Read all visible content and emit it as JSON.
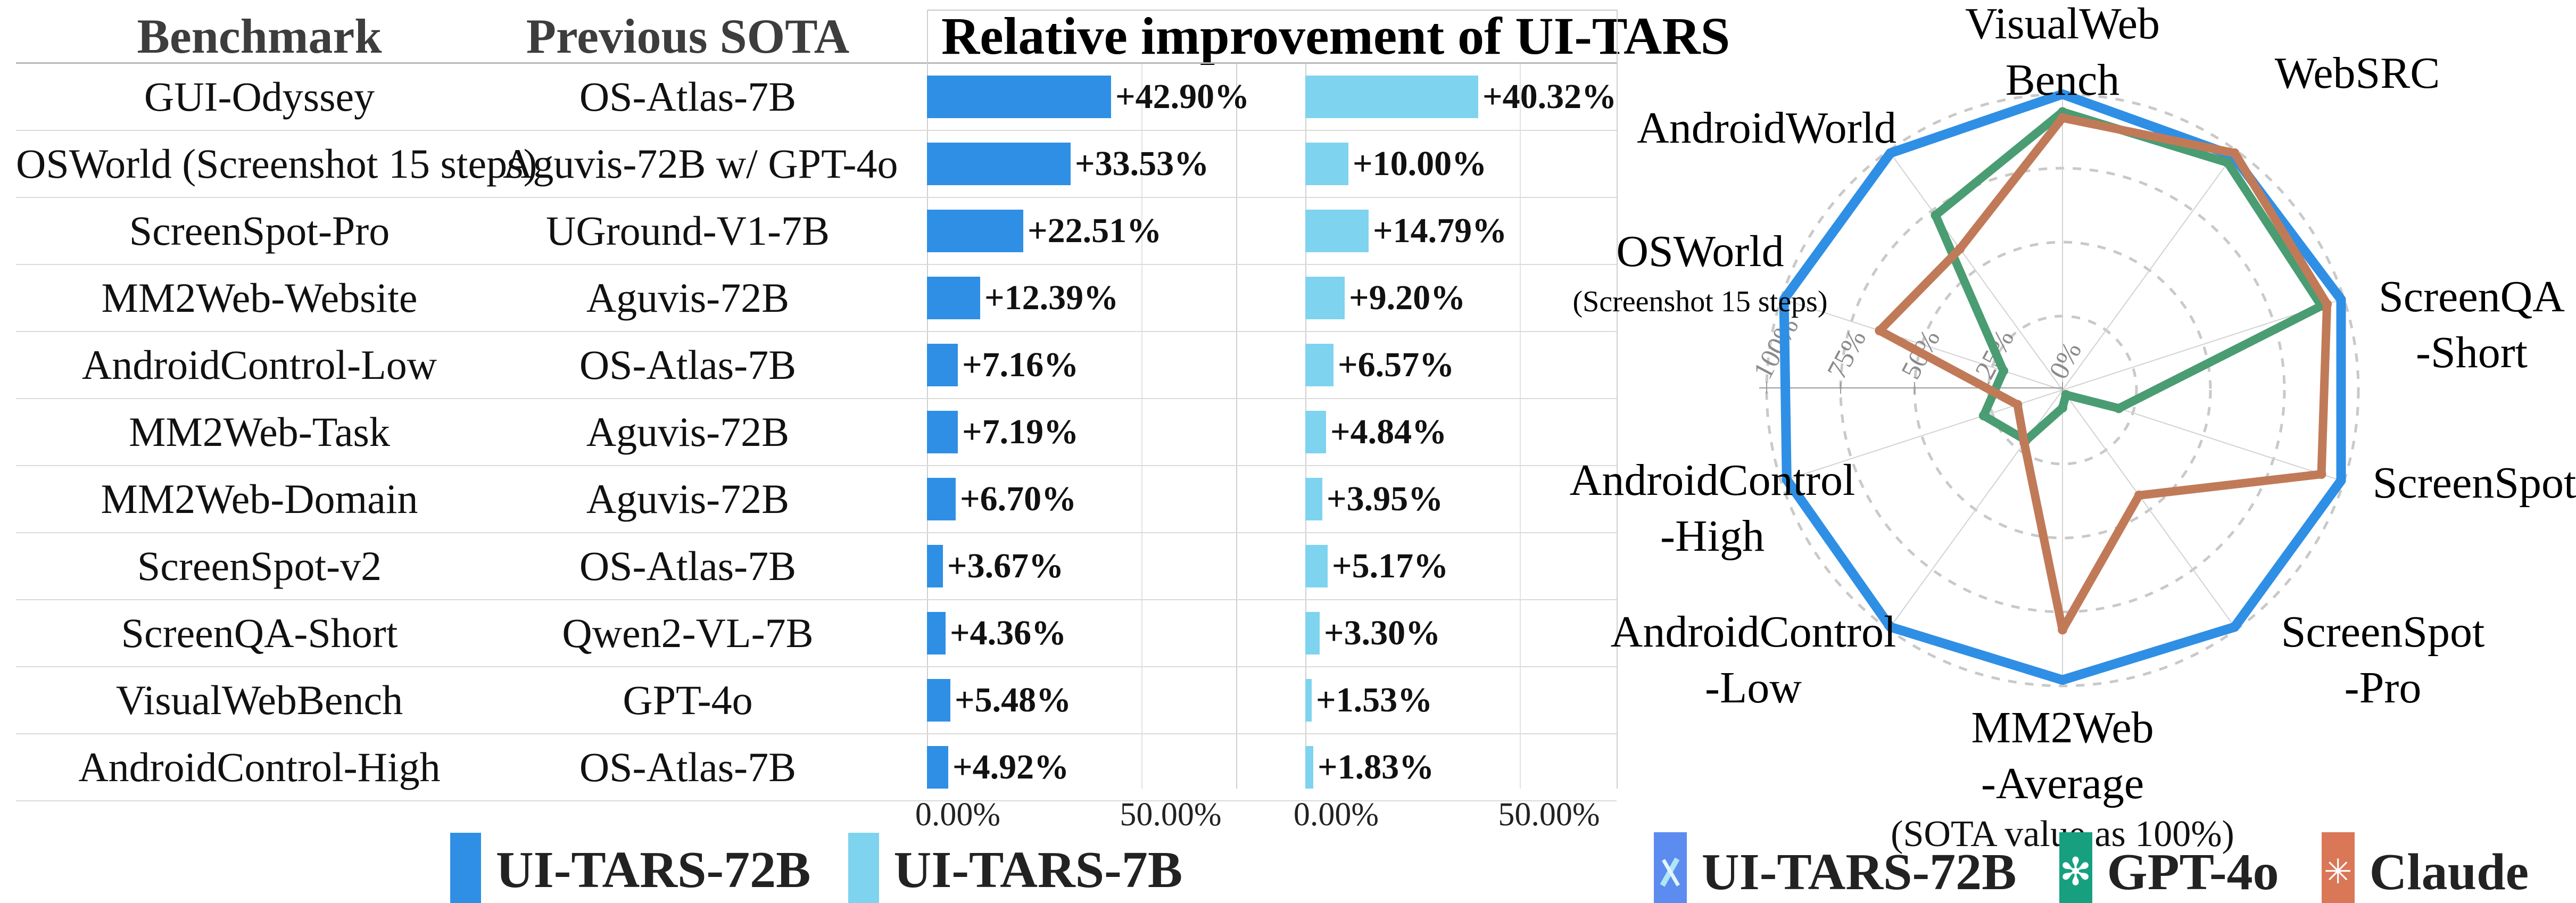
{
  "table": {
    "header": {
      "benchmark": "Benchmark",
      "previous_sota": "Previous SOTA",
      "improvement": "Relative improvement of UI-TARS"
    },
    "rows": [
      {
        "benchmark": "GUI-Odyssey",
        "previous_sota": "OS-Atlas-7B",
        "label_72b": "+42.90%",
        "label_7b": "+40.32%"
      },
      {
        "benchmark": "OSWorld (Screenshot 15 steps)",
        "previous_sota": "Aguvis-72B w/ GPT-4o",
        "label_72b": "+33.53%",
        "label_7b": "+10.00%"
      },
      {
        "benchmark": "ScreenSpot-Pro",
        "previous_sota": "UGround-V1-7B",
        "label_72b": "+22.51%",
        "label_7b": "+14.79%"
      },
      {
        "benchmark": "MM2Web-Website",
        "previous_sota": "Aguvis-72B",
        "label_72b": "+12.39%",
        "label_7b": "+9.20%"
      },
      {
        "benchmark": "AndroidControl-Low",
        "previous_sota": "OS-Atlas-7B",
        "label_72b": "+7.16%",
        "label_7b": "+6.57%"
      },
      {
        "benchmark": "MM2Web-Task",
        "previous_sota": "Aguvis-72B",
        "label_72b": "+7.19%",
        "label_7b": "+4.84%"
      },
      {
        "benchmark": "MM2Web-Domain",
        "previous_sota": "Aguvis-72B",
        "label_72b": "+6.70%",
        "label_7b": "+3.95%"
      },
      {
        "benchmark": "ScreenSpot-v2",
        "previous_sota": "OS-Atlas-7B",
        "label_72b": "+3.67%",
        "label_7b": "+5.17%"
      },
      {
        "benchmark": "ScreenQA-Short",
        "previous_sota": "Qwen2-VL-7B",
        "label_72b": "+4.36%",
        "label_7b": "+3.30%"
      },
      {
        "benchmark": "VisualWebBench",
        "previous_sota": "GPT-4o",
        "label_72b": "+5.48%",
        "label_7b": "+1.53%"
      },
      {
        "benchmark": "AndroidControl-High",
        "previous_sota": "OS-Atlas-7B",
        "label_72b": "+4.92%",
        "label_7b": "+1.83%"
      }
    ],
    "axis_ticks": [
      "0.00%",
      "50.00%"
    ],
    "legend": [
      {
        "label": "UI-TARS-72B",
        "color": "#2f8fe5"
      },
      {
        "label": "UI-TARS-7B",
        "color": "#7ed3ef"
      }
    ]
  },
  "radar": {
    "caption": "(SOTA value as 100%)",
    "tick_labels": [
      "100%",
      "75%",
      "50%",
      "25%",
      "0%"
    ],
    "axes": [
      {
        "label": [
          "VisualWeb",
          "Bench"
        ]
      },
      {
        "label": [
          "WebSRC"
        ]
      },
      {
        "label": [
          "ScreenQA",
          "-Short"
        ]
      },
      {
        "label": [
          "ScreenSpot"
        ]
      },
      {
        "label": [
          "ScreenSpot",
          "-Pro"
        ]
      },
      {
        "label": [
          "MM2Web",
          "-Average"
        ]
      },
      {
        "label": [
          "AndroidControl",
          "-Low"
        ]
      },
      {
        "label": [
          "AndroidControl",
          "-High"
        ]
      },
      {
        "label": [
          "OSWorld"
        ],
        "sublabel": "(Screenshot 15 steps)"
      },
      {
        "label": [
          "AndroidWorld"
        ]
      }
    ],
    "legend": [
      {
        "label": "UI-TARS-72B",
        "icon": "uitars",
        "bg": "#5c8cf0",
        "line": "#2f8fe5"
      },
      {
        "label": "GPT-4o",
        "icon": "openai",
        "bg": "#16a07f",
        "line": "#4a9c73"
      },
      {
        "label": "Claude",
        "icon": "claude",
        "bg": "#d97757",
        "line": "#c17a58"
      }
    ]
  },
  "chart_data": [
    {
      "type": "bar",
      "title": "Relative improvement of UI-TARS",
      "orientation": "horizontal",
      "categories": [
        "GUI-Odyssey",
        "OSWorld (Screenshot 15 steps)",
        "ScreenSpot-Pro",
        "MM2Web-Website",
        "AndroidControl-Low",
        "MM2Web-Task",
        "MM2Web-Domain",
        "ScreenSpot-v2",
        "ScreenQA-Short",
        "VisualWebBench",
        "AndroidControl-High"
      ],
      "series": [
        {
          "name": "UI-TARS-72B",
          "color": "#2f8fe5",
          "values": [
            42.9,
            33.53,
            22.51,
            12.39,
            7.16,
            7.19,
            6.7,
            3.67,
            4.36,
            5.48,
            4.92
          ]
        },
        {
          "name": "UI-TARS-7B",
          "color": "#7ed3ef",
          "values": [
            40.32,
            10.0,
            14.79,
            9.2,
            6.57,
            4.84,
            3.95,
            5.17,
            3.3,
            1.53,
            1.83
          ]
        }
      ],
      "xlabel": "",
      "ylabel": "",
      "x_ticks": [
        "0.00%",
        "50.00%"
      ],
      "xlim": [
        0,
        72
      ],
      "grid": true,
      "unit": "%"
    },
    {
      "type": "radar",
      "title": "(SOTA value as 100%)",
      "categories": [
        "VisualWebBench",
        "WebSRC",
        "ScreenQA-Short",
        "ScreenSpot",
        "ScreenSpot-Pro",
        "MM2Web-Average",
        "AndroidControl-Low",
        "AndroidControl-High",
        "OSWorld (Screenshot 15 steps)",
        "AndroidWorld"
      ],
      "series": [
        {
          "name": "UI-TARS-72B",
          "color": "#2f8fe5",
          "values": [
            100,
            98,
            99,
            99,
            99,
            98,
            99,
            98,
            99,
            99
          ]
        },
        {
          "name": "GPT-4o",
          "color": "#4a9c73",
          "values": [
            94,
            95,
            92,
            20,
            2,
            6,
            21,
            28,
            21,
            73
          ]
        },
        {
          "name": "Claude",
          "color": "#c17a58",
          "values": [
            92,
            99,
            94,
            92,
            44,
            81,
            22,
            16,
            65,
            59
          ]
        }
      ],
      "radial_ticks": [
        0,
        25,
        50,
        75,
        100
      ],
      "radial_range": [
        0,
        100
      ],
      "legend_position": "bottom",
      "grid": "dashed-circles"
    }
  ]
}
